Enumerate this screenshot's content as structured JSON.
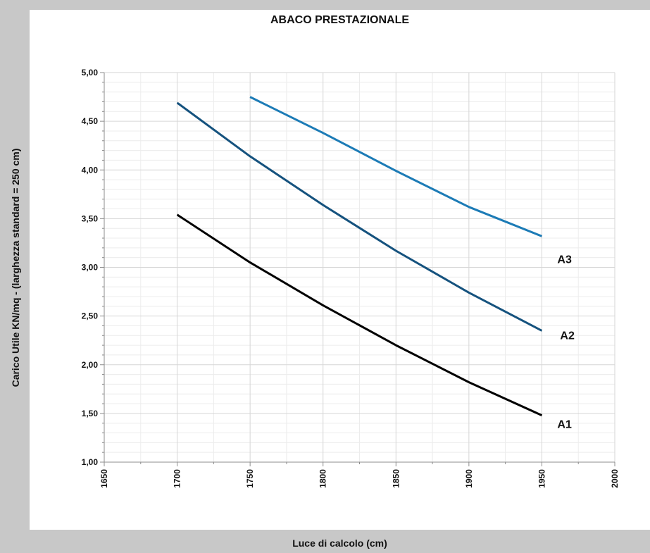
{
  "chart_data": {
    "type": "line",
    "title": "ABACO PRESTAZIONALE",
    "xlabel": "Luce di calcolo (cm)",
    "ylabel": "Carico Utile KN/mq - (larghezza standard = 250 cm)",
    "xlim": [
      1650,
      2000
    ],
    "ylim": [
      1.0,
      5.0
    ],
    "x_ticks": [
      "1650",
      "1700",
      "1750",
      "1800",
      "1850",
      "1900",
      "1950",
      "2000"
    ],
    "y_ticks": [
      "1,00",
      "1,50",
      "2,00",
      "2,50",
      "3,00",
      "3,50",
      "4,00",
      "4,50",
      "5,00"
    ],
    "grid": true,
    "legend": "none",
    "series": [
      {
        "name": "A1",
        "color": "#000000",
        "x": [
          1700,
          1750,
          1800,
          1850,
          1900,
          1950
        ],
        "values": [
          3.54,
          3.05,
          2.61,
          2.2,
          1.82,
          1.48
        ]
      },
      {
        "name": "A2",
        "color": "#15527e",
        "x": [
          1700,
          1750,
          1800,
          1850,
          1900,
          1950
        ],
        "values": [
          4.69,
          4.14,
          3.64,
          3.17,
          2.74,
          2.35
        ]
      },
      {
        "name": "A3",
        "color": "#1c7bb6",
        "x": [
          1750,
          1800,
          1850,
          1900,
          1950
        ],
        "values": [
          4.75,
          4.38,
          3.99,
          3.62,
          3.32
        ]
      }
    ]
  }
}
